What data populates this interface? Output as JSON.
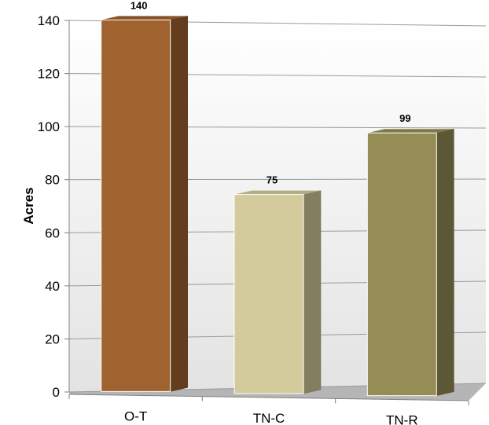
{
  "chart_data": {
    "type": "bar",
    "categories": [
      "O-T",
      "TN-C",
      "TN-R"
    ],
    "values": [
      140,
      75,
      99
    ],
    "data_labels": [
      "140",
      "75",
      "99"
    ],
    "title": "",
    "xlabel": "",
    "ylabel": "Acres",
    "ylim": [
      0,
      140
    ],
    "y_ticks": [
      "0",
      "20",
      "40",
      "60",
      "80",
      "100",
      "120",
      "140"
    ],
    "grid": true,
    "style": "3d",
    "colors": [
      "#A0622F",
      "#D3CB9B",
      "#958D55"
    ]
  }
}
